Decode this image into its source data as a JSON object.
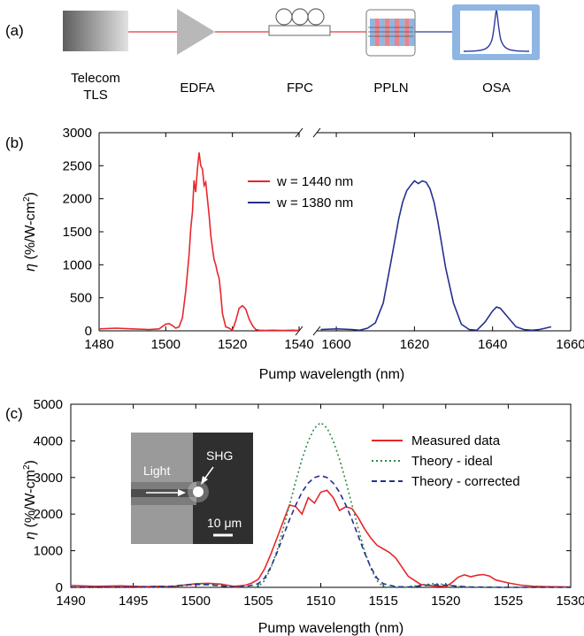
{
  "panel_labels": [
    "(a)",
    "(b)",
    "(c)"
  ],
  "setup": {
    "components": [
      "Telecom TLS",
      "EDFA",
      "FPC",
      "PPLN",
      "OSA"
    ],
    "label_lines": [
      [
        "Telecom",
        "TLS"
      ],
      [
        "EDFA"
      ],
      [
        "FPC"
      ],
      [
        "PPLN"
      ],
      [
        "OSA"
      ]
    ],
    "colors": {
      "fiber_pump": "#e8383d",
      "fiber_shg": "#2b3a9a",
      "osa_frame": "#8fb6e3"
    }
  },
  "chart_data": [
    {
      "type": "line",
      "panel": "(b)",
      "xlabel": "Pump wavelength (nm)",
      "ylabel_symbol": "η",
      "ylabel_unit": " (%/W-cm",
      "ylabel_sup": "2",
      "ylabel_close": ")",
      "ylim": [
        0,
        3000
      ],
      "yticks": [
        0,
        500,
        1000,
        1500,
        2000,
        2500,
        3000
      ],
      "broken_axis": true,
      "segments": [
        {
          "xlim": [
            1480,
            1540
          ],
          "xticks": [
            1480,
            1500,
            1520,
            1540
          ]
        },
        {
          "xlim": [
            1595,
            1660
          ],
          "xticks": [
            1600,
            1620,
            1640,
            1660
          ]
        }
      ],
      "grid": false,
      "legend_position": "top-center",
      "series": [
        {
          "name": "w = 1440 nm",
          "color": "#e8262c",
          "x": [
            1480,
            1485,
            1490,
            1495,
            1498,
            1500,
            1501,
            1502,
            1503,
            1504,
            1505,
            1506,
            1507,
            1507.5,
            1508,
            1508.5,
            1509,
            1509.5,
            1510,
            1510.5,
            1511,
            1511.5,
            1512,
            1512.5,
            1513,
            1513.5,
            1514,
            1514.5,
            1515,
            1515.5,
            1516,
            1516.5,
            1517,
            1518,
            1519,
            1520,
            1521,
            1522,
            1523,
            1524,
            1525,
            1526,
            1527,
            1528,
            1530,
            1532,
            1535,
            1538,
            1540
          ],
          "y": [
            30,
            40,
            30,
            20,
            30,
            100,
            110,
            80,
            40,
            60,
            200,
            600,
            1150,
            1550,
            1800,
            2280,
            2100,
            2450,
            2700,
            2500,
            2450,
            2200,
            2250,
            2000,
            1750,
            1450,
            1250,
            1080,
            1000,
            880,
            800,
            560,
            260,
            60,
            40,
            10,
            150,
            340,
            380,
            330,
            180,
            80,
            20,
            10,
            5,
            10,
            5,
            10,
            5
          ]
        },
        {
          "name": "w = 1380 nm",
          "color": "#25308f",
          "x": [
            1596,
            1600,
            1604,
            1606,
            1608,
            1610,
            1612,
            1614,
            1616,
            1617,
            1618,
            1619,
            1620,
            1621,
            1622,
            1623,
            1624,
            1625,
            1626,
            1627,
            1628,
            1630,
            1632,
            1634,
            1636,
            1638,
            1640,
            1641,
            1642,
            1644,
            1646,
            1648,
            1650,
            1652,
            1655
          ],
          "y": [
            20,
            30,
            20,
            10,
            40,
            120,
            420,
            1050,
            1700,
            1950,
            2120,
            2200,
            2270,
            2230,
            2270,
            2250,
            2150,
            1950,
            1650,
            1300,
            950,
            420,
            100,
            20,
            10,
            130,
            300,
            360,
            340,
            200,
            60,
            20,
            10,
            20,
            60
          ]
        }
      ]
    },
    {
      "type": "line",
      "panel": "(c)",
      "xlabel": "Pump wavelength (nm)",
      "ylabel_symbol": "η",
      "ylabel_unit": " (%/W-cm",
      "ylabel_sup": "2",
      "ylabel_close": ")",
      "xlim": [
        1490,
        1530
      ],
      "ylim": [
        0,
        5000
      ],
      "xticks": [
        1490,
        1495,
        1500,
        1505,
        1510,
        1515,
        1520,
        1525,
        1530
      ],
      "yticks": [
        0,
        1000,
        2000,
        3000,
        4000,
        5000
      ],
      "grid": false,
      "legend_position": "top-right",
      "series": [
        {
          "name": "Measured data",
          "color": "#e8262c",
          "dash": "solid",
          "x": [
            1490,
            1492,
            1494,
            1496,
            1497,
            1498,
            1499,
            1500,
            1501,
            1502,
            1502.5,
            1503,
            1503.5,
            1504,
            1504.5,
            1505,
            1505.5,
            1506,
            1506.5,
            1507,
            1507.5,
            1508,
            1508.5,
            1509,
            1509.5,
            1510,
            1510.5,
            1511,
            1511.5,
            1512,
            1512.5,
            1513,
            1513.5,
            1514,
            1514.5,
            1515,
            1515.5,
            1516,
            1516.5,
            1517,
            1518,
            1519,
            1520,
            1520.5,
            1521,
            1521.5,
            1522,
            1522.5,
            1523,
            1523.5,
            1524,
            1525,
            1526,
            1527,
            1528,
            1530
          ],
          "y": [
            50,
            30,
            40,
            20,
            30,
            20,
            60,
            100,
            110,
            90,
            60,
            30,
            40,
            60,
            120,
            220,
            500,
            900,
            1350,
            1800,
            2250,
            2200,
            2000,
            2450,
            2300,
            2600,
            2650,
            2450,
            2100,
            2200,
            2150,
            1900,
            1600,
            1350,
            1150,
            1050,
            950,
            800,
            550,
            300,
            80,
            40,
            20,
            130,
            280,
            340,
            290,
            330,
            350,
            310,
            200,
            120,
            60,
            30,
            20,
            10
          ]
        },
        {
          "name": "Theory - ideal",
          "color": "#2f8a45",
          "dash": "dot",
          "x": [
            1490,
            1495,
            1498,
            1500,
            1501,
            1502,
            1503,
            1504,
            1505,
            1505.5,
            1506,
            1506.5,
            1507,
            1507.5,
            1508,
            1508.5,
            1509,
            1509.5,
            1510,
            1510.5,
            1511,
            1511.5,
            1512,
            1512.5,
            1513,
            1513.5,
            1514,
            1514.5,
            1515,
            1516,
            1517,
            1518,
            1519,
            1520,
            1521,
            1522,
            1525,
            1530
          ],
          "y": [
            0,
            0,
            20,
            80,
            100,
            60,
            10,
            0,
            20,
            180,
            520,
            1000,
            1600,
            2250,
            2900,
            3500,
            4000,
            4350,
            4500,
            4350,
            4000,
            3500,
            2900,
            2250,
            1600,
            1000,
            520,
            180,
            20,
            0,
            10,
            60,
            100,
            80,
            20,
            0,
            0,
            0
          ]
        },
        {
          "name": "Theory - corrected",
          "color": "#25308f",
          "dash": "dash",
          "x": [
            1490,
            1495,
            1498,
            1499,
            1500,
            1501,
            1502,
            1503,
            1504,
            1505,
            1505.5,
            1506,
            1506.5,
            1507,
            1507.5,
            1508,
            1508.5,
            1509,
            1509.5,
            1510,
            1510.5,
            1511,
            1511.5,
            1512,
            1512.5,
            1513,
            1513.5,
            1514,
            1514.5,
            1515,
            1516,
            1517,
            1518,
            1519,
            1520,
            1521,
            1522,
            1525,
            1530
          ],
          "y": [
            0,
            5,
            30,
            60,
            80,
            70,
            40,
            10,
            20,
            100,
            250,
            550,
            950,
            1400,
            1850,
            2250,
            2600,
            2850,
            3000,
            3050,
            3000,
            2850,
            2600,
            2250,
            1850,
            1400,
            950,
            550,
            250,
            100,
            20,
            10,
            40,
            70,
            60,
            30,
            10,
            0,
            0
          ]
        }
      ]
    }
  ],
  "inset": {
    "labels": {
      "light": "Light",
      "shg": "SHG",
      "scale": "10 μm"
    }
  }
}
